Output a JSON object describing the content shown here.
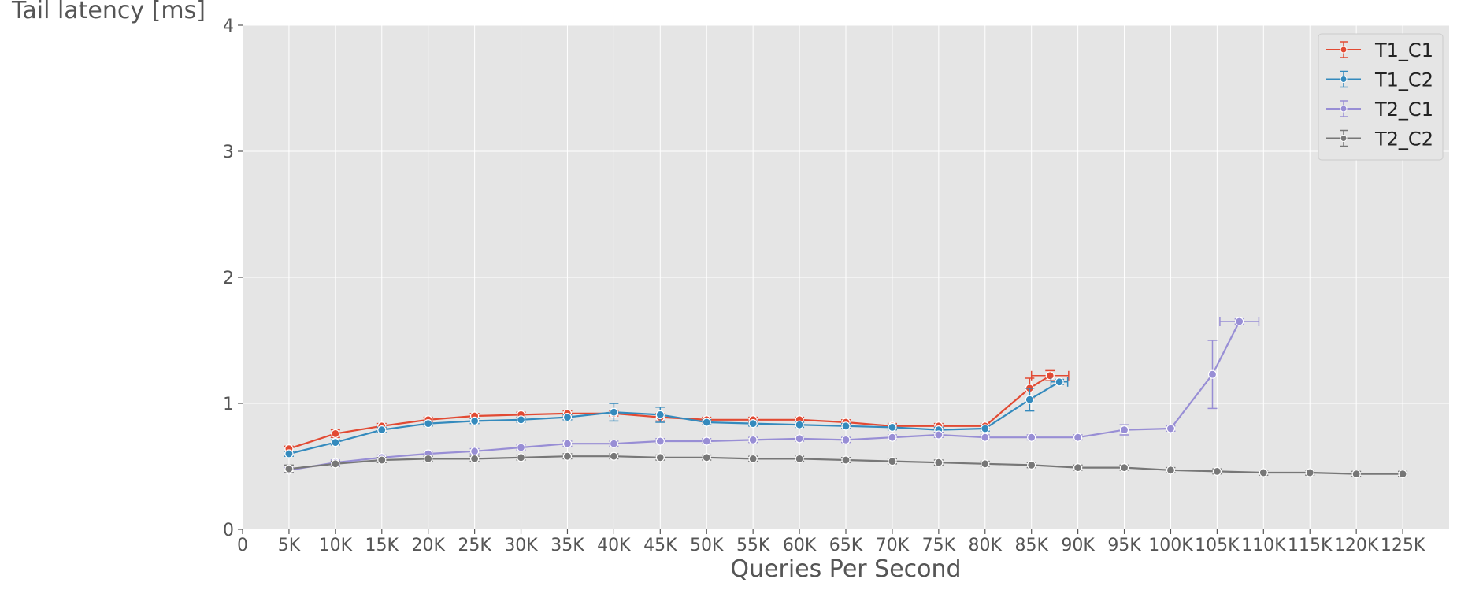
{
  "chart_data": {
    "type": "line",
    "title": "",
    "xlabel": "Queries Per Second",
    "ylabel": "Tail latency [ms]",
    "xlim": [
      0,
      130000
    ],
    "ylim": [
      0,
      4
    ],
    "x_ticks": [
      0,
      5000,
      10000,
      15000,
      20000,
      25000,
      30000,
      35000,
      40000,
      45000,
      50000,
      55000,
      60000,
      65000,
      70000,
      75000,
      80000,
      85000,
      90000,
      95000,
      100000,
      105000,
      110000,
      115000,
      120000,
      125000
    ],
    "x_tick_labels": [
      "0",
      "5K",
      "10K",
      "15K",
      "20K",
      "25K",
      "30K",
      "35K",
      "40K",
      "45K",
      "50K",
      "55K",
      "60K",
      "65K",
      "70K",
      "75K",
      "80K",
      "85K",
      "90K",
      "95K",
      "100K",
      "105K",
      "110K",
      "115K",
      "120K",
      "125K"
    ],
    "y_ticks": [
      0,
      1,
      2,
      3,
      4
    ],
    "y_tick_labels": [
      "0",
      "1",
      "2",
      "3",
      "4"
    ],
    "grid": true,
    "legend_position": "top-right",
    "background": "#e5e5e5",
    "series": [
      {
        "name": "T1_C1",
        "color": "#e24a33",
        "points": [
          {
            "x": 5000,
            "y": 0.64,
            "yerr": 0.02,
            "xerr": 0
          },
          {
            "x": 10000,
            "y": 0.76,
            "yerr": 0.03,
            "xerr": 0
          },
          {
            "x": 15000,
            "y": 0.82,
            "yerr": 0.02,
            "xerr": 0
          },
          {
            "x": 20000,
            "y": 0.87,
            "yerr": 0.02,
            "xerr": 0
          },
          {
            "x": 25000,
            "y": 0.9,
            "yerr": 0.02,
            "xerr": 0
          },
          {
            "x": 30000,
            "y": 0.91,
            "yerr": 0.02,
            "xerr": 0
          },
          {
            "x": 35000,
            "y": 0.92,
            "yerr": 0.02,
            "xerr": 0
          },
          {
            "x": 40000,
            "y": 0.92,
            "yerr": 0.02,
            "xerr": 0
          },
          {
            "x": 45000,
            "y": 0.89,
            "yerr": 0.03,
            "xerr": 0
          },
          {
            "x": 50000,
            "y": 0.87,
            "yerr": 0.02,
            "xerr": 0
          },
          {
            "x": 55000,
            "y": 0.87,
            "yerr": 0.02,
            "xerr": 0
          },
          {
            "x": 60000,
            "y": 0.87,
            "yerr": 0.02,
            "xerr": 0
          },
          {
            "x": 65000,
            "y": 0.85,
            "yerr": 0.02,
            "xerr": 0
          },
          {
            "x": 70000,
            "y": 0.82,
            "yerr": 0.02,
            "xerr": 0
          },
          {
            "x": 75000,
            "y": 0.82,
            "yerr": 0.02,
            "xerr": 0
          },
          {
            "x": 80000,
            "y": 0.82,
            "yerr": 0.02,
            "xerr": 0
          },
          {
            "x": 84800,
            "y": 1.12,
            "yerr": 0.08,
            "xerr": 0
          },
          {
            "x": 87000,
            "y": 1.22,
            "yerr": 0.04,
            "xerr": 2000
          }
        ]
      },
      {
        "name": "T1_C2",
        "color": "#348abd",
        "points": [
          {
            "x": 5000,
            "y": 0.6,
            "yerr": 0.02,
            "xerr": 0
          },
          {
            "x": 10000,
            "y": 0.69,
            "yerr": 0.02,
            "xerr": 0
          },
          {
            "x": 15000,
            "y": 0.79,
            "yerr": 0.02,
            "xerr": 0
          },
          {
            "x": 20000,
            "y": 0.84,
            "yerr": 0.02,
            "xerr": 0
          },
          {
            "x": 25000,
            "y": 0.86,
            "yerr": 0.02,
            "xerr": 0
          },
          {
            "x": 30000,
            "y": 0.87,
            "yerr": 0.02,
            "xerr": 0
          },
          {
            "x": 35000,
            "y": 0.89,
            "yerr": 0.02,
            "xerr": 0
          },
          {
            "x": 40000,
            "y": 0.93,
            "yerr": 0.07,
            "xerr": 0
          },
          {
            "x": 45000,
            "y": 0.91,
            "yerr": 0.06,
            "xerr": 0
          },
          {
            "x": 50000,
            "y": 0.85,
            "yerr": 0.02,
            "xerr": 0
          },
          {
            "x": 55000,
            "y": 0.84,
            "yerr": 0.02,
            "xerr": 0
          },
          {
            "x": 60000,
            "y": 0.83,
            "yerr": 0.02,
            "xerr": 0
          },
          {
            "x": 65000,
            "y": 0.82,
            "yerr": 0.02,
            "xerr": 0
          },
          {
            "x": 70000,
            "y": 0.81,
            "yerr": 0.02,
            "xerr": 0
          },
          {
            "x": 75000,
            "y": 0.79,
            "yerr": 0.02,
            "xerr": 0
          },
          {
            "x": 80000,
            "y": 0.8,
            "yerr": 0.02,
            "xerr": 0
          },
          {
            "x": 84800,
            "y": 1.03,
            "yerr": 0.09,
            "xerr": 0
          },
          {
            "x": 88000,
            "y": 1.17,
            "yerr": 0.02,
            "xerr": 900
          }
        ]
      },
      {
        "name": "T2_C1",
        "color": "#988ed5",
        "points": [
          {
            "x": 5000,
            "y": 0.47,
            "yerr": 0.02,
            "xerr": 0
          },
          {
            "x": 10000,
            "y": 0.53,
            "yerr": 0.02,
            "xerr": 0
          },
          {
            "x": 15000,
            "y": 0.57,
            "yerr": 0.02,
            "xerr": 0
          },
          {
            "x": 20000,
            "y": 0.6,
            "yerr": 0.02,
            "xerr": 0
          },
          {
            "x": 25000,
            "y": 0.62,
            "yerr": 0.02,
            "xerr": 0
          },
          {
            "x": 30000,
            "y": 0.65,
            "yerr": 0.02,
            "xerr": 0
          },
          {
            "x": 35000,
            "y": 0.68,
            "yerr": 0.02,
            "xerr": 0
          },
          {
            "x": 40000,
            "y": 0.68,
            "yerr": 0.02,
            "xerr": 0
          },
          {
            "x": 45000,
            "y": 0.7,
            "yerr": 0.02,
            "xerr": 0
          },
          {
            "x": 50000,
            "y": 0.7,
            "yerr": 0.02,
            "xerr": 0
          },
          {
            "x": 55000,
            "y": 0.71,
            "yerr": 0.02,
            "xerr": 0
          },
          {
            "x": 60000,
            "y": 0.72,
            "yerr": 0.02,
            "xerr": 0
          },
          {
            "x": 65000,
            "y": 0.71,
            "yerr": 0.02,
            "xerr": 0
          },
          {
            "x": 70000,
            "y": 0.73,
            "yerr": 0.02,
            "xerr": 0
          },
          {
            "x": 75000,
            "y": 0.75,
            "yerr": 0.02,
            "xerr": 0
          },
          {
            "x": 80000,
            "y": 0.73,
            "yerr": 0.02,
            "xerr": 0
          },
          {
            "x": 85000,
            "y": 0.73,
            "yerr": 0.02,
            "xerr": 0
          },
          {
            "x": 90000,
            "y": 0.73,
            "yerr": 0.02,
            "xerr": 0
          },
          {
            "x": 95000,
            "y": 0.79,
            "yerr": 0.04,
            "xerr": 0
          },
          {
            "x": 100000,
            "y": 0.8,
            "yerr": 0.02,
            "xerr": 0
          },
          {
            "x": 104500,
            "y": 1.23,
            "yerr": 0.27,
            "xerr": 0
          },
          {
            "x": 107400,
            "y": 1.65,
            "yerr": 0.02,
            "xerr": 2100
          }
        ]
      },
      {
        "name": "T2_C2",
        "color": "#777777",
        "points": [
          {
            "x": 5000,
            "y": 0.48,
            "yerr": 0.03,
            "xerr": 0
          },
          {
            "x": 10000,
            "y": 0.52,
            "yerr": 0.02,
            "xerr": 0
          },
          {
            "x": 15000,
            "y": 0.55,
            "yerr": 0.02,
            "xerr": 0
          },
          {
            "x": 20000,
            "y": 0.56,
            "yerr": 0.02,
            "xerr": 0
          },
          {
            "x": 25000,
            "y": 0.56,
            "yerr": 0.02,
            "xerr": 0
          },
          {
            "x": 30000,
            "y": 0.57,
            "yerr": 0.02,
            "xerr": 0
          },
          {
            "x": 35000,
            "y": 0.58,
            "yerr": 0.02,
            "xerr": 0
          },
          {
            "x": 40000,
            "y": 0.58,
            "yerr": 0.02,
            "xerr": 0
          },
          {
            "x": 45000,
            "y": 0.57,
            "yerr": 0.02,
            "xerr": 0
          },
          {
            "x": 50000,
            "y": 0.57,
            "yerr": 0.02,
            "xerr": 0
          },
          {
            "x": 55000,
            "y": 0.56,
            "yerr": 0.02,
            "xerr": 0
          },
          {
            "x": 60000,
            "y": 0.56,
            "yerr": 0.02,
            "xerr": 0
          },
          {
            "x": 65000,
            "y": 0.55,
            "yerr": 0.02,
            "xerr": 0
          },
          {
            "x": 70000,
            "y": 0.54,
            "yerr": 0.02,
            "xerr": 0
          },
          {
            "x": 75000,
            "y": 0.53,
            "yerr": 0.02,
            "xerr": 0
          },
          {
            "x": 80000,
            "y": 0.52,
            "yerr": 0.02,
            "xerr": 0
          },
          {
            "x": 85000,
            "y": 0.51,
            "yerr": 0.02,
            "xerr": 0
          },
          {
            "x": 90000,
            "y": 0.49,
            "yerr": 0.02,
            "xerr": 0
          },
          {
            "x": 95000,
            "y": 0.49,
            "yerr": 0.02,
            "xerr": 0
          },
          {
            "x": 100000,
            "y": 0.47,
            "yerr": 0.02,
            "xerr": 0
          },
          {
            "x": 105000,
            "y": 0.46,
            "yerr": 0.02,
            "xerr": 0
          },
          {
            "x": 110000,
            "y": 0.45,
            "yerr": 0.02,
            "xerr": 0
          },
          {
            "x": 115000,
            "y": 0.45,
            "yerr": 0.02,
            "xerr": 0
          },
          {
            "x": 120000,
            "y": 0.44,
            "yerr": 0.02,
            "xerr": 0
          },
          {
            "x": 125000,
            "y": 0.44,
            "yerr": 0.02,
            "xerr": 0
          }
        ]
      }
    ]
  }
}
